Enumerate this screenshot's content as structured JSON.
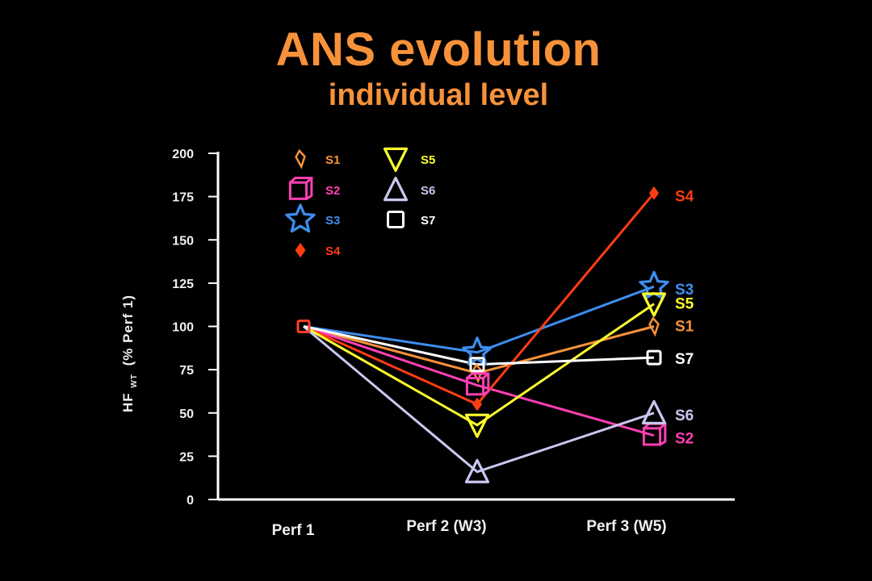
{
  "chart_data": {
    "type": "line",
    "title": "ANS evolution",
    "subtitle": "individual level",
    "ylabel_main": "HF",
    "ylabel_sub": "WT",
    "ylabel_rest": "(% Perf 1)",
    "xlabel": "",
    "categories": [
      "Perf 1",
      "Perf 2 (W3)",
      "Perf 3 (W5)"
    ],
    "ylim": [
      0,
      200
    ],
    "yticks": [
      "0",
      "25",
      "50",
      "75",
      "100",
      "125",
      "150",
      "175",
      "200"
    ],
    "grid": false,
    "legend_position": "top-left",
    "series": [
      {
        "name": "S1",
        "color": "#f7923a",
        "marker": "diamond-outline",
        "values": [
          100,
          73,
          100
        ]
      },
      {
        "name": "S2",
        "color": "#ff3fb4",
        "marker": "cube",
        "values": [
          100,
          66,
          37
        ]
      },
      {
        "name": "S3",
        "color": "#3d8ef0",
        "marker": "star",
        "values": [
          100,
          85,
          123
        ]
      },
      {
        "name": "S4",
        "color": "#ff3d12",
        "marker": "diamond-filled",
        "values": [
          100,
          55,
          177
        ]
      },
      {
        "name": "S5",
        "color": "#ffff2e",
        "marker": "triangle-down",
        "values": [
          100,
          43,
          113
        ]
      },
      {
        "name": "S6",
        "color": "#c8c8f0",
        "marker": "triangle-up",
        "values": [
          100,
          16,
          50
        ]
      },
      {
        "name": "S7",
        "color": "#ffffff",
        "marker": "square",
        "values": [
          100,
          78,
          82
        ]
      }
    ]
  }
}
